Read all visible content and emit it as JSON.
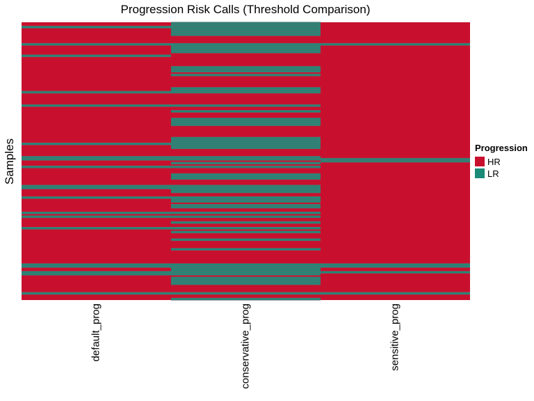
{
  "chart_data": {
    "type": "heatmap",
    "title": "Progression Risk Calls (Threshold Comparison)",
    "xlabel": "",
    "ylabel": "Samples",
    "columns": [
      "default_prog",
      "conservative_prog",
      "sensitive_prog"
    ],
    "legend": {
      "title": "Progression",
      "placement": "right",
      "items": [
        {
          "label": "HR",
          "color": "#C8102E"
        },
        {
          "label": "LR",
          "color": "#1B8A78"
        }
      ]
    },
    "grid_color": "#5A6E6E",
    "row_count": 145,
    "lr_rows": {
      "default_prog": [
        2,
        11,
        17,
        36,
        43,
        63,
        70,
        71,
        75,
        85,
        86,
        91,
        99,
        101,
        107,
        126,
        127,
        130,
        131,
        141
      ],
      "conservative_prog": [
        0,
        1,
        2,
        3,
        4,
        5,
        6,
        11,
        12,
        13,
        14,
        15,
        23,
        24,
        25,
        27,
        34,
        35,
        36,
        43,
        46,
        50,
        51,
        52,
        53,
        60,
        61,
        62,
        63,
        64,
        65,
        70,
        71,
        73,
        75,
        79,
        80,
        81,
        85,
        86,
        87,
        88,
        91,
        92,
        93,
        95,
        96,
        99,
        101,
        104,
        107,
        109,
        113,
        118,
        126,
        127,
        128,
        129,
        130,
        131,
        133,
        134,
        135,
        136,
        141,
        144
      ],
      "sensitive_prog": [
        11,
        71,
        72,
        126,
        127,
        130,
        141
      ]
    }
  }
}
